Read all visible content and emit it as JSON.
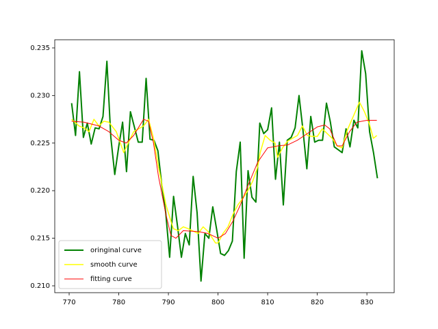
{
  "chart_data": {
    "type": "line",
    "xlim": [
      767.1,
      835.5
    ],
    "ylim": [
      0.20928,
      0.23586
    ],
    "xticks": [
      770,
      780,
      790,
      800,
      810,
      820,
      830
    ],
    "yticks": [
      {
        "value": 0.21,
        "label": "0.210"
      },
      {
        "value": 0.215,
        "label": "0.215"
      },
      {
        "value": 0.22,
        "label": "0.220"
      },
      {
        "value": 0.225,
        "label": "0.225"
      },
      {
        "value": 0.23,
        "label": "0.230"
      },
      {
        "value": 0.235,
        "label": "0.235"
      }
    ],
    "legend": "lower left",
    "series": [
      {
        "name": "oringinal curve",
        "color": "green",
        "width": 2,
        "x": [
          770.5,
          771.29,
          772.08,
          772.87,
          773.66,
          774.45,
          775.24,
          776.03,
          776.82,
          777.61,
          778.4,
          779.19,
          779.98,
          780.77,
          781.56,
          782.35,
          783.14,
          783.93,
          784.72,
          785.51,
          786.3,
          787.09,
          787.88,
          788.67,
          789.46,
          790.25,
          791.04,
          791.83,
          792.62,
          793.41,
          794.2,
          794.99,
          795.78,
          796.57,
          797.36,
          798.15,
          798.94,
          799.73,
          800.52,
          801.31,
          802.1,
          802.89,
          803.68,
          804.47,
          805.26,
          806.05,
          806.84,
          807.63,
          808.42,
          809.21,
          810.0,
          810.79,
          811.58,
          812.37,
          813.16,
          813.95,
          814.74,
          815.53,
          816.32,
          817.11,
          817.9,
          818.69,
          819.48,
          820.27,
          821.06,
          821.85,
          822.64,
          823.43,
          824.22,
          825.01,
          825.8,
          826.59,
          827.38,
          828.17,
          828.96,
          829.75,
          830.54,
          831.33,
          832.12
        ],
        "values": [
          0.2292,
          0.2258,
          0.2325,
          0.2256,
          0.2271,
          0.2249,
          0.2266,
          0.2265,
          0.2278,
          0.2336,
          0.2256,
          0.2217,
          0.2246,
          0.2272,
          0.222,
          0.2283,
          0.2267,
          0.2251,
          0.2251,
          0.2318,
          0.2254,
          0.2253,
          0.2242,
          0.2206,
          0.2177,
          0.213,
          0.2194,
          0.2163,
          0.213,
          0.2155,
          0.2143,
          0.2215,
          0.2177,
          0.2105,
          0.2155,
          0.215,
          0.2183,
          0.2159,
          0.2134,
          0.2132,
          0.2137,
          0.2147,
          0.222,
          0.2251,
          0.2129,
          0.2221,
          0.2193,
          0.2188,
          0.2271,
          0.226,
          0.2264,
          0.2287,
          0.2212,
          0.2251,
          0.2185,
          0.2253,
          0.2256,
          0.2266,
          0.23,
          0.2264,
          0.2223,
          0.2278,
          0.2251,
          0.2253,
          0.2253,
          0.2292,
          0.2272,
          0.2246,
          0.2243,
          0.224,
          0.2265,
          0.2246,
          0.2274,
          0.2266,
          0.2347,
          0.2323,
          0.2262,
          0.224,
          0.2213
        ]
      },
      {
        "name": "smooth curve",
        "color": "yellow",
        "width": 1.5,
        "x": [
          770.5,
          772,
          773,
          774,
          775,
          776,
          777,
          778,
          779.5,
          781,
          783,
          785,
          786,
          787,
          788,
          789.5,
          791,
          792,
          793,
          794,
          796,
          797,
          798,
          799.5,
          800,
          801,
          802,
          803,
          804,
          805,
          806,
          807,
          808,
          808.5,
          809.5,
          810.5,
          811.5,
          812,
          813,
          814,
          816,
          817,
          818,
          819,
          820,
          821,
          822,
          823,
          824,
          825,
          826,
          827,
          828.5,
          829.5,
          830.5,
          831.3,
          832
        ],
        "values": [
          0.2275,
          0.2268,
          0.2266,
          0.2262,
          0.2275,
          0.2268,
          0.2273,
          0.2272,
          0.2262,
          0.224,
          0.2262,
          0.2268,
          0.2275,
          0.2255,
          0.2225,
          0.2185,
          0.216,
          0.2158,
          0.2162,
          0.216,
          0.2155,
          0.2162,
          0.2157,
          0.2145,
          0.2145,
          0.2155,
          0.2162,
          0.2175,
          0.2185,
          0.2192,
          0.22,
          0.221,
          0.2225,
          0.224,
          0.2258,
          0.2253,
          0.225,
          0.2235,
          0.2245,
          0.2252,
          0.2258,
          0.2268,
          0.2258,
          0.2257,
          0.2257,
          0.2265,
          0.226,
          0.2255,
          0.2247,
          0.2245,
          0.2263,
          0.2275,
          0.2293,
          0.2283,
          0.227,
          0.2255,
          0.2258
        ]
      },
      {
        "name": "fitting curve",
        "color": "red",
        "width": 1,
        "x": [
          770.5,
          773,
          776,
          778,
          780,
          781.5,
          783,
          785,
          786,
          787,
          788,
          789.5,
          790.5,
          791.5,
          793,
          796,
          798,
          800,
          801.5,
          803,
          804.5,
          806,
          808,
          810,
          812,
          814,
          816,
          818,
          820,
          821.5,
          822.5,
          824,
          825,
          826.5,
          828,
          830,
          832
        ],
        "values": [
          0.2273,
          0.2272,
          0.2268,
          0.2262,
          0.2253,
          0.225,
          0.2258,
          0.2275,
          0.2273,
          0.225,
          0.2215,
          0.2175,
          0.2153,
          0.215,
          0.2158,
          0.2157,
          0.2155,
          0.215,
          0.2155,
          0.2168,
          0.2185,
          0.2205,
          0.223,
          0.2245,
          0.2247,
          0.2248,
          0.2253,
          0.226,
          0.2267,
          0.2269,
          0.2265,
          0.2247,
          0.2247,
          0.2262,
          0.2272,
          0.2274,
          0.2274
        ]
      }
    ]
  }
}
